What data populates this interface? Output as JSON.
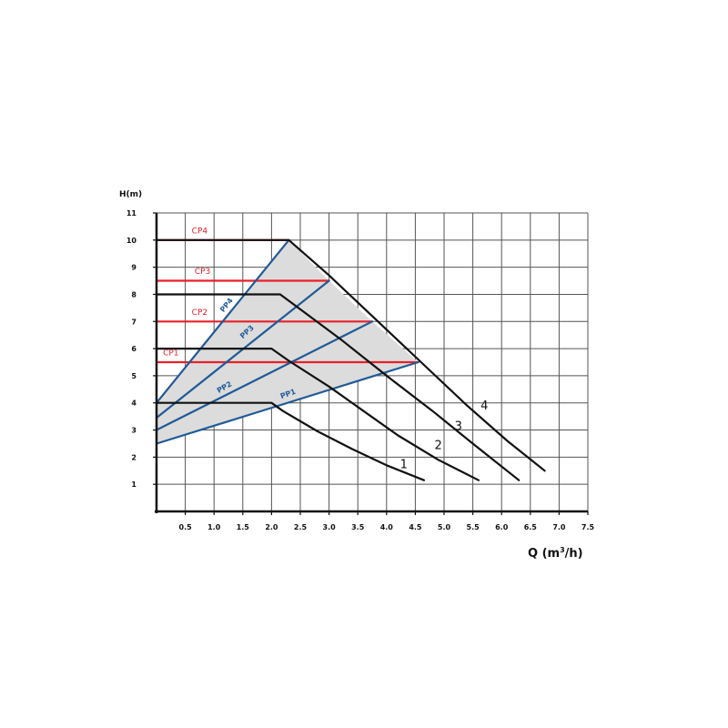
{
  "chart_data": {
    "type": "line",
    "xlabel": "Q (m³/h)",
    "ylabel": "H(m)",
    "xlim": [
      0,
      7.5
    ],
    "ylim": [
      0,
      11
    ],
    "grid": true,
    "x_ticks": [
      "0.5",
      "1.0",
      "1.5",
      "2.0",
      "2.5",
      "3.0",
      "3.5",
      "4.0",
      "4.5",
      "5.0",
      "5.5",
      "6.0",
      "6.5",
      "7.0",
      "7.5"
    ],
    "y_ticks": [
      "1",
      "2",
      "3",
      "4",
      "5",
      "6",
      "7",
      "8",
      "9",
      "10",
      "11"
    ],
    "shaded_region": {
      "points": [
        [
          0,
          4.0
        ],
        [
          2.3,
          10.0
        ],
        [
          3.0,
          8.5
        ],
        [
          3.75,
          7.0
        ],
        [
          4.55,
          5.5
        ],
        [
          0,
          2.5
        ]
      ],
      "color": "#dcdcdc"
    },
    "series": [
      {
        "name": "1",
        "group": "speed",
        "color": "#111111",
        "points": [
          [
            0,
            4.0
          ],
          [
            2.0,
            4.0
          ],
          [
            2.2,
            3.7
          ],
          [
            2.8,
            2.95
          ],
          [
            3.4,
            2.3
          ],
          [
            4.0,
            1.7
          ],
          [
            4.65,
            1.15
          ]
        ],
        "label_at": [
          4.3,
          1.6
        ]
      },
      {
        "name": "2",
        "group": "speed",
        "color": "#111111",
        "points": [
          [
            0,
            6.0
          ],
          [
            2.0,
            6.0
          ],
          [
            2.3,
            5.55
          ],
          [
            3.0,
            4.6
          ],
          [
            3.6,
            3.7
          ],
          [
            4.2,
            2.8
          ],
          [
            4.9,
            1.9
          ],
          [
            5.6,
            1.15
          ]
        ],
        "label_at": [
          4.9,
          2.3
        ]
      },
      {
        "name": "3",
        "group": "speed",
        "color": "#111111",
        "points": [
          [
            0,
            8.0
          ],
          [
            2.15,
            8.0
          ],
          [
            2.5,
            7.45
          ],
          [
            3.2,
            6.35
          ],
          [
            4.0,
            5.0
          ],
          [
            4.8,
            3.7
          ],
          [
            5.5,
            2.5
          ],
          [
            6.3,
            1.15
          ]
        ],
        "label_at": [
          5.25,
          3.0
        ]
      },
      {
        "name": "4",
        "group": "speed",
        "color": "#111111",
        "points": [
          [
            0,
            10.0
          ],
          [
            2.3,
            10.0
          ],
          [
            3.0,
            8.7
          ],
          [
            3.8,
            7.1
          ],
          [
            4.6,
            5.5
          ],
          [
            5.4,
            3.9
          ],
          [
            6.1,
            2.6
          ],
          [
            6.75,
            1.5
          ]
        ],
        "label_at": [
          5.7,
          3.75
        ]
      },
      {
        "name": "CP1",
        "group": "constant-pressure",
        "color": "#e8202a",
        "points": [
          [
            0,
            5.5
          ],
          [
            4.55,
            5.5
          ]
        ],
        "label_at": [
          0.25,
          5.75
        ]
      },
      {
        "name": "CP2",
        "group": "constant-pressure",
        "color": "#e8202a",
        "points": [
          [
            0,
            7.0
          ],
          [
            3.75,
            7.0
          ]
        ],
        "label_at": [
          0.75,
          7.25
        ]
      },
      {
        "name": "CP3",
        "group": "constant-pressure",
        "color": "#e8202a",
        "points": [
          [
            0,
            8.5
          ],
          [
            3.0,
            8.5
          ]
        ],
        "label_at": [
          0.8,
          8.75
        ]
      },
      {
        "name": "CP4",
        "group": "constant-pressure",
        "color": "#e8202a",
        "points": [
          [
            0,
            10.0
          ],
          [
            2.3,
            10.0
          ]
        ],
        "label_at": [
          0.75,
          10.25
        ]
      },
      {
        "name": "PP1",
        "group": "proportional-pressure",
        "color": "#1f5a98",
        "points": [
          [
            0,
            2.5
          ],
          [
            4.55,
            5.5
          ]
        ],
        "label_at": [
          2.3,
          4.25
        ],
        "label_angle": -20
      },
      {
        "name": "PP2",
        "group": "proportional-pressure",
        "color": "#1f5a98",
        "points": [
          [
            0,
            3.0
          ],
          [
            3.75,
            7.0
          ]
        ],
        "label_at": [
          1.2,
          4.5
        ],
        "label_angle": -30
      },
      {
        "name": "PP3",
        "group": "proportional-pressure",
        "color": "#1f5a98",
        "points": [
          [
            0,
            3.45
          ],
          [
            3.0,
            8.5
          ]
        ],
        "label_at": [
          1.6,
          6.55
        ],
        "label_angle": -42
      },
      {
        "name": "PP4",
        "group": "proportional-pressure",
        "color": "#1f5a98",
        "points": [
          [
            0,
            4.0
          ],
          [
            2.3,
            10.0
          ]
        ],
        "label_at": [
          1.25,
          7.55
        ],
        "label_angle": -52
      }
    ]
  }
}
